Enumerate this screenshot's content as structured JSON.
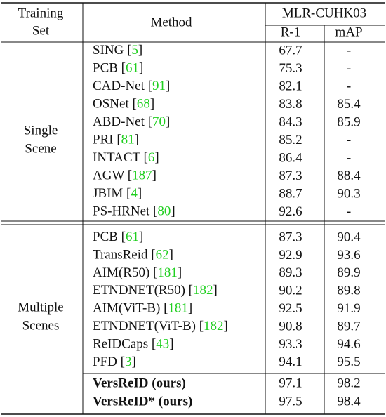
{
  "header": {
    "set": [
      "Training",
      "Set"
    ],
    "method": "Method",
    "dataset": "MLR-CUHK03",
    "metrics": [
      "R-1",
      "mAP"
    ]
  },
  "groups": [
    {
      "label": [
        "Single",
        "Scene"
      ],
      "rows": [
        {
          "method": "SING [5]",
          "r1": 67.7,
          "map": "-"
        },
        {
          "method": "PCB [61]",
          "r1": 75.3,
          "map": "-"
        },
        {
          "method": "CAD-Net [91]",
          "r1": 82.1,
          "map": "-"
        },
        {
          "method": "OSNet [68]",
          "r1": 83.8,
          "map": 85.4
        },
        {
          "method": "ABD-Net [70]",
          "r1": 84.3,
          "map": 85.9
        },
        {
          "method": "PRI [81]",
          "r1": 85.2,
          "map": "-"
        },
        {
          "method": "INTACT [6]",
          "r1": 86.4,
          "map": "-"
        },
        {
          "method": "AGW [187]",
          "r1": 87.3,
          "map": 88.4
        },
        {
          "method": "JBIM [4]",
          "r1": 88.7,
          "map": 90.3
        },
        {
          "method": "PS-HRNet [80]",
          "r1": 92.6,
          "map": "-"
        }
      ]
    },
    {
      "label": [
        "Multiple",
        "Scenes"
      ],
      "rows": [
        {
          "method": "PCB [61]",
          "r1": 87.3,
          "map": 90.4
        },
        {
          "method": "TransReid [62]",
          "r1": 92.9,
          "map": 93.6
        },
        {
          "method": "AIM(R50) [181]",
          "r1": 89.3,
          "map": 89.9
        },
        {
          "method": "ETNDNET(R50) [182]",
          "r1": 90.2,
          "map": 89.8
        },
        {
          "method": "AIM(ViT-B) [181]",
          "r1": 92.5,
          "map": 91.9
        },
        {
          "method": "ETNDNET(ViT-B) [182]",
          "r1": 90.8,
          "map": 89.7
        },
        {
          "method": "ReIDCaps [43]",
          "r1": 93.3,
          "map": 94.6
        },
        {
          "method": "PFD [3]",
          "r1": 94.1,
          "map": 95.5
        }
      ],
      "ours": [
        {
          "method": "VersReID (ours)",
          "r1": 97.1,
          "map": 98.2
        },
        {
          "method": "VersReID* (ours)",
          "r1": 97.5,
          "map": 98.4
        }
      ]
    }
  ]
}
